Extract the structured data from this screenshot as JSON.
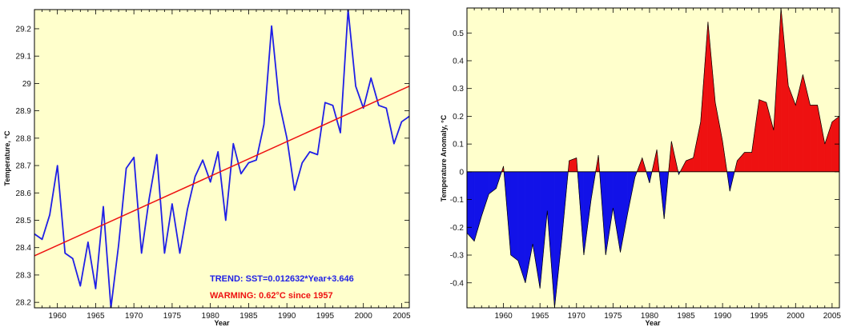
{
  "chart_data": [
    {
      "type": "line",
      "xlabel": "Year",
      "ylabel": "Temperature, °C",
      "xlim": [
        1957,
        2006
      ],
      "ylim": [
        28.18,
        29.27
      ],
      "xticks": [
        1960,
        1965,
        1970,
        1975,
        1980,
        1985,
        1990,
        1995,
        2000,
        2005
      ],
      "yticks": [
        28.2,
        28.3,
        28.4,
        28.5,
        28.6,
        28.7,
        28.8,
        28.9,
        29.0,
        29.1,
        29.2
      ],
      "ytick_labels": [
        "28.2",
        "28.3",
        "28.4",
        "28.5",
        "28.6",
        "28.7",
        "28.8",
        "28.9",
        "29",
        "29.1",
        "29.2"
      ],
      "grid": false,
      "background": "#ffffcc",
      "series": [
        {
          "color": "#1f1fe6",
          "x": [
            1957,
            1958,
            1959,
            1960,
            1961,
            1962,
            1963,
            1964,
            1965,
            1966,
            1967,
            1968,
            1969,
            1970,
            1971,
            1972,
            1973,
            1974,
            1975,
            1976,
            1977,
            1978,
            1979,
            1980,
            1981,
            1982,
            1983,
            1984,
            1985,
            1986,
            1987,
            1988,
            1989,
            1990,
            1991,
            1992,
            1993,
            1994,
            1995,
            1996,
            1997,
            1998,
            1999,
            2000,
            2001,
            2002,
            2003,
            2004,
            2005,
            2006
          ],
          "values": [
            28.45,
            28.43,
            28.52,
            28.7,
            28.38,
            28.36,
            28.26,
            28.42,
            28.25,
            28.55,
            28.18,
            28.41,
            28.69,
            28.73,
            28.38,
            28.58,
            28.74,
            28.38,
            28.56,
            28.38,
            28.54,
            28.66,
            28.72,
            28.64,
            28.75,
            28.5,
            28.78,
            28.67,
            28.71,
            28.72,
            28.85,
            29.21,
            28.93,
            28.8,
            28.61,
            28.71,
            28.75,
            28.74,
            28.93,
            28.92,
            28.82,
            29.27,
            28.99,
            28.91,
            29.02,
            28.92,
            28.91,
            28.78,
            28.86,
            28.88
          ]
        },
        {
          "color": "#ee1111",
          "x": [
            1957,
            2006
          ],
          "values": [
            28.37,
            28.99
          ]
        }
      ],
      "annotations": [
        {
          "text": "TREND:  SST=0.012632*Year+3.646",
          "color": "#1f1fe6"
        },
        {
          "text": "WARMING: 0.62°C since 1957",
          "color": "#ee1111"
        }
      ]
    },
    {
      "type": "area",
      "xlabel": "Year",
      "ylabel": "Temperature Anomaly, °C",
      "xlim": [
        1955,
        2006
      ],
      "ylim": [
        -0.49,
        0.59
      ],
      "xticks": [
        1960,
        1965,
        1970,
        1975,
        1980,
        1985,
        1990,
        1995,
        2000,
        2005
      ],
      "yticks": [
        -0.4,
        -0.3,
        -0.2,
        -0.1,
        0,
        0.1,
        0.2,
        0.3,
        0.4,
        0.5
      ],
      "ytick_labels": [
        "-0.4",
        "-0.3",
        "-0.2",
        "-0.1",
        "0",
        "0.1",
        "0.2",
        "0.3",
        "0.4",
        "0.5"
      ],
      "grid": false,
      "background": "#ffffcc",
      "positive_color": "#ee1111",
      "negative_color": "#1212e8",
      "x": [
        1955,
        1956,
        1957,
        1958,
        1959,
        1960,
        1961,
        1962,
        1963,
        1964,
        1965,
        1966,
        1967,
        1968,
        1969,
        1970,
        1971,
        1972,
        1973,
        1974,
        1975,
        1976,
        1977,
        1978,
        1979,
        1980,
        1981,
        1982,
        1983,
        1984,
        1985,
        1986,
        1987,
        1988,
        1989,
        1990,
        1991,
        1992,
        1993,
        1994,
        1995,
        1996,
        1997,
        1998,
        1999,
        2000,
        2001,
        2002,
        2003,
        2004,
        2005,
        2006
      ],
      "values": [
        -0.22,
        -0.25,
        -0.16,
        -0.08,
        -0.06,
        0.02,
        -0.3,
        -0.32,
        -0.4,
        -0.26,
        -0.42,
        -0.14,
        -0.49,
        -0.24,
        0.04,
        0.05,
        -0.3,
        -0.1,
        0.06,
        -0.3,
        -0.13,
        -0.29,
        -0.15,
        -0.02,
        0.05,
        -0.04,
        0.08,
        -0.17,
        0.11,
        -0.01,
        0.04,
        0.05,
        0.18,
        0.54,
        0.25,
        0.11,
        -0.07,
        0.04,
        0.07,
        0.07,
        0.26,
        0.25,
        0.15,
        0.59,
        0.31,
        0.24,
        0.35,
        0.24,
        0.24,
        0.1,
        0.18,
        0.2
      ]
    }
  ]
}
